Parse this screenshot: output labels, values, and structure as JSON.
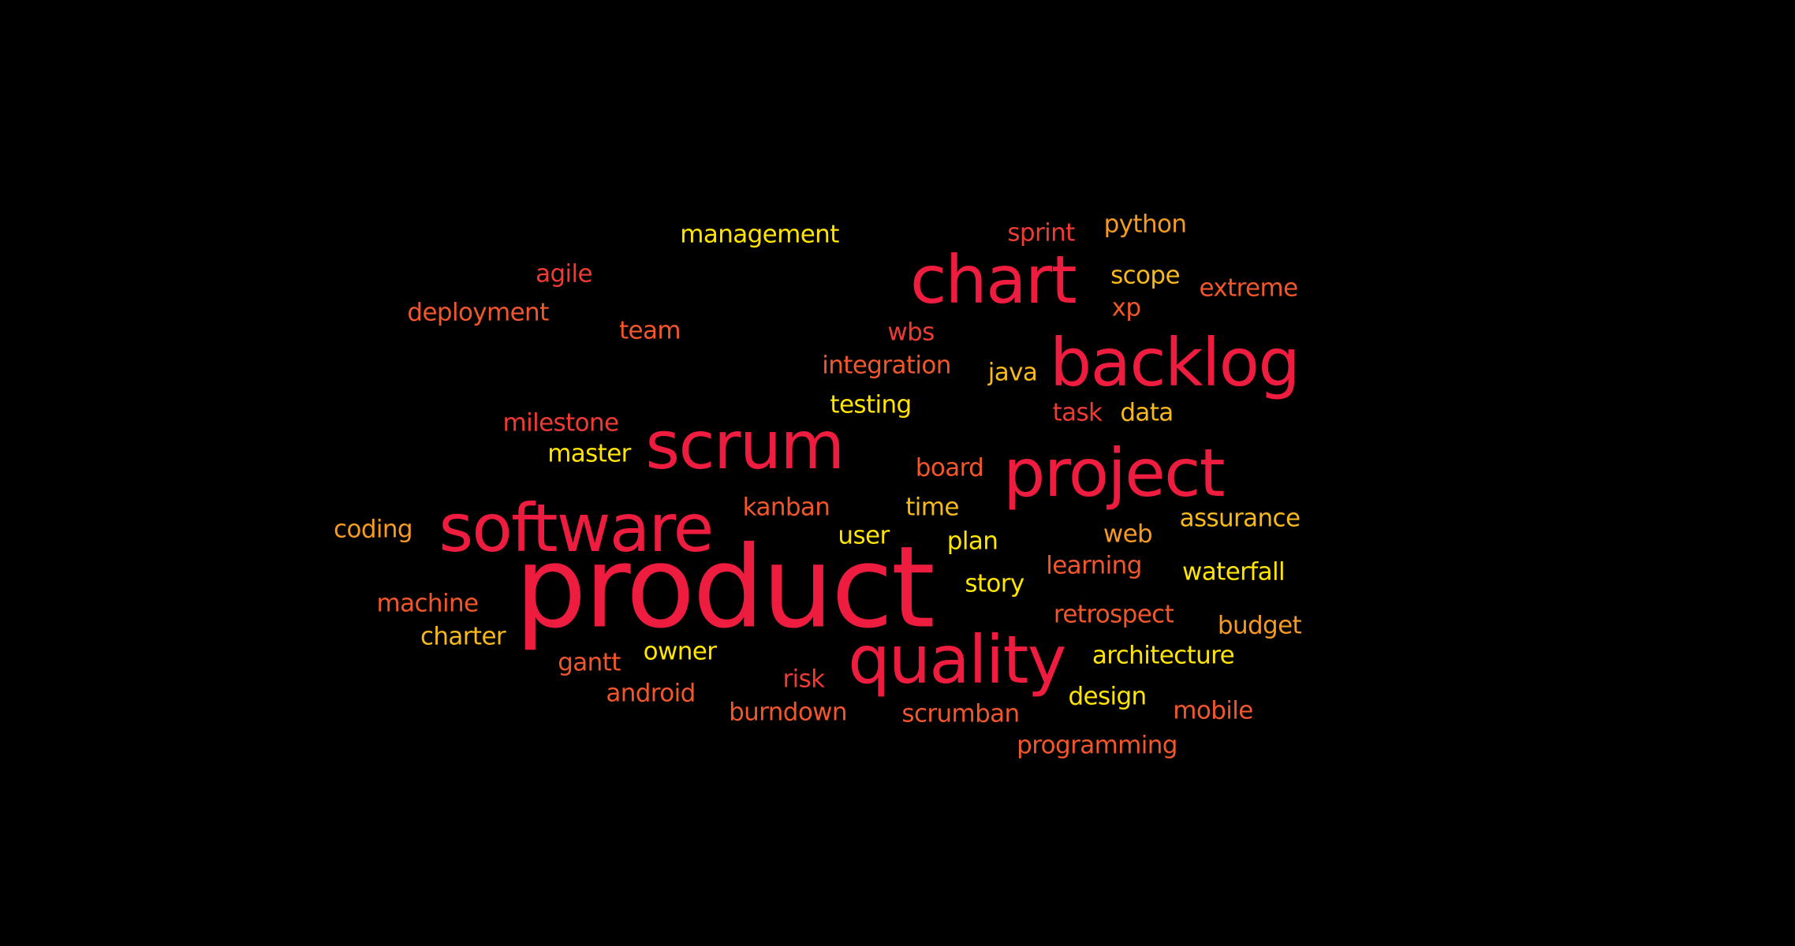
{
  "colors": {
    "background": "#000000",
    "red": "#ee1c3e",
    "red_orange": "#ef3b34",
    "orange_red": "#f2572b",
    "orange": "#f59a23",
    "yellow_orange": "#f7b91b",
    "yellow": "#ffe500"
  },
  "words": [
    {
      "text": "product",
      "color": "#ee1c3e"
    },
    {
      "text": "software",
      "color": "#ee1c3e"
    },
    {
      "text": "scrum",
      "color": "#ee1c3e"
    },
    {
      "text": "quality",
      "color": "#ee1c3e"
    },
    {
      "text": "project",
      "color": "#ee1c3e"
    },
    {
      "text": "backlog",
      "color": "#ee1c3e"
    },
    {
      "text": "chart",
      "color": "#ee1c3e"
    },
    {
      "text": "management",
      "color": "#ffe500"
    },
    {
      "text": "sprint",
      "color": "#ef3b34"
    },
    {
      "text": "python",
      "color": "#f59a23"
    },
    {
      "text": "agile",
      "color": "#ef3b34"
    },
    {
      "text": "scope",
      "color": "#f7b91b"
    },
    {
      "text": "extreme",
      "color": "#f2572b"
    },
    {
      "text": "xp",
      "color": "#f2572b"
    },
    {
      "text": "deployment",
      "color": "#f2572b"
    },
    {
      "text": "team",
      "color": "#f2572b"
    },
    {
      "text": "wbs",
      "color": "#ef3b34"
    },
    {
      "text": "integration",
      "color": "#f2572b"
    },
    {
      "text": "java",
      "color": "#f7b91b"
    },
    {
      "text": "testing",
      "color": "#ffe500"
    },
    {
      "text": "task",
      "color": "#ef3b34"
    },
    {
      "text": "data",
      "color": "#f7b91b"
    },
    {
      "text": "milestone",
      "color": "#ef3b34"
    },
    {
      "text": "master",
      "color": "#ffe500"
    },
    {
      "text": "board",
      "color": "#f2572b"
    },
    {
      "text": "kanban",
      "color": "#f2572b"
    },
    {
      "text": "time",
      "color": "#f7b91b"
    },
    {
      "text": "coding",
      "color": "#f59a23"
    },
    {
      "text": "assurance",
      "color": "#f7b91b"
    },
    {
      "text": "user",
      "color": "#ffe500"
    },
    {
      "text": "plan",
      "color": "#ffe500"
    },
    {
      "text": "web",
      "color": "#f59a23"
    },
    {
      "text": "learning",
      "color": "#f2572b"
    },
    {
      "text": "waterfall",
      "color": "#ffe500"
    },
    {
      "text": "story",
      "color": "#ffe500"
    },
    {
      "text": "machine",
      "color": "#f2572b"
    },
    {
      "text": "retrospect",
      "color": "#f2572b"
    },
    {
      "text": "budget",
      "color": "#f59a23"
    },
    {
      "text": "charter",
      "color": "#f7b91b"
    },
    {
      "text": "owner",
      "color": "#ffe500"
    },
    {
      "text": "architecture",
      "color": "#ffe500"
    },
    {
      "text": "gantt",
      "color": "#f2572b"
    },
    {
      "text": "risk",
      "color": "#ef3b34"
    },
    {
      "text": "android",
      "color": "#f2572b"
    },
    {
      "text": "design",
      "color": "#ffe500"
    },
    {
      "text": "burndown",
      "color": "#f2572b"
    },
    {
      "text": "scrumban",
      "color": "#f2572b"
    },
    {
      "text": "mobile",
      "color": "#f2572b"
    },
    {
      "text": "programming",
      "color": "#f2572b"
    }
  ]
}
